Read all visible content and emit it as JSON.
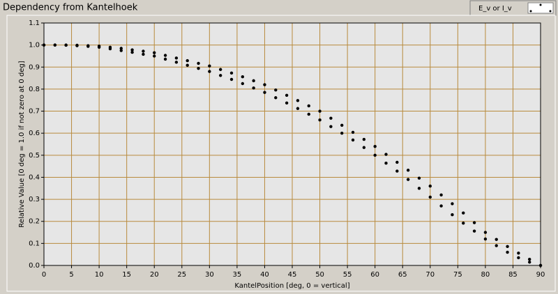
{
  "chart_data": {
    "type": "scatter",
    "title": "Dependency from Kantelhoek",
    "x_label": "KantelPosition [deg, 0 = vertical]",
    "y_label": "Relative Value [0 deg = 1.0 if not zero at 0 deg]",
    "xlim": [
      0,
      90
    ],
    "ylim": [
      0,
      1.1
    ],
    "xticks": [
      0,
      5,
      10,
      15,
      20,
      25,
      30,
      35,
      40,
      45,
      50,
      55,
      60,
      65,
      70,
      75,
      80,
      85,
      90
    ],
    "yticks": [
      {
        "value": 0,
        "label": "0.0"
      },
      0.1,
      0.2,
      0.3,
      0.4,
      0.5,
      0.6,
      0.7,
      0.8,
      0.9,
      {
        "value": 1,
        "label": "1.0"
      },
      1.1
    ],
    "grid": true,
    "grid_color": "#b88a3c",
    "legend": "top-right",
    "x": [
      0,
      2,
      4,
      6,
      8,
      10,
      12,
      14,
      16,
      18,
      20,
      22,
      24,
      26,
      28,
      30,
      32,
      34,
      36,
      38,
      40,
      42,
      44,
      46,
      48,
      50,
      52,
      54,
      56,
      58,
      60,
      62,
      64,
      66,
      68,
      70,
      72,
      74,
      76,
      78,
      80,
      82,
      84,
      86,
      88,
      90,
      0,
      2,
      4,
      6,
      8,
      10,
      12,
      14,
      16,
      18,
      20,
      22,
      24,
      26,
      28,
      30,
      32,
      34,
      36,
      38,
      40,
      42,
      44,
      46,
      48,
      50,
      52,
      54,
      56,
      58,
      60,
      62,
      64,
      66,
      68,
      70,
      72,
      74,
      76,
      78,
      80,
      82,
      84,
      86,
      88,
      90
    ],
    "series": [
      {
        "name": "E_v or I_v",
        "color": "#000000",
        "values": [
          1.0,
          1.0,
          1.0,
          0.999,
          0.997,
          0.995,
          0.99,
          0.985,
          0.978,
          0.972,
          0.965,
          0.953,
          0.941,
          0.929,
          0.917,
          0.905,
          0.889,
          0.873,
          0.856,
          0.838,
          0.82,
          0.796,
          0.772,
          0.748,
          0.724,
          0.7,
          0.668,
          0.636,
          0.604,
          0.572,
          0.54,
          0.504,
          0.468,
          0.432,
          0.396,
          0.36,
          0.32,
          0.28,
          0.238,
          0.194,
          0.15,
          0.118,
          0.086,
          0.056,
          0.028,
          0.0,
          1.0,
          1.0,
          0.999,
          0.997,
          0.994,
          0.99,
          0.983,
          0.975,
          0.967,
          0.958,
          0.95,
          0.936,
          0.922,
          0.908,
          0.894,
          0.88,
          0.862,
          0.844,
          0.825,
          0.805,
          0.785,
          0.761,
          0.737,
          0.712,
          0.686,
          0.66,
          0.63,
          0.6,
          0.569,
          0.535,
          0.5,
          0.464,
          0.428,
          0.39,
          0.35,
          0.31,
          0.27,
          0.23,
          0.192,
          0.156,
          0.12,
          0.09,
          0.06,
          0.035,
          0.015,
          0.0
        ]
      }
    ]
  }
}
